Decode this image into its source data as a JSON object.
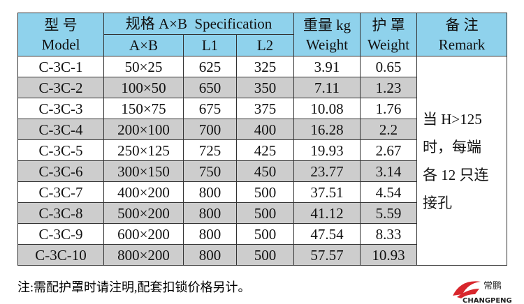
{
  "table": {
    "header": {
      "model": [
        "型 号",
        "Model"
      ],
      "spec": "规格 A×B",
      "spec_en": "Specification",
      "sub": [
        "A×B",
        "L1",
        "L2"
      ],
      "weight": [
        "重量 kg",
        "Weight"
      ],
      "guard": [
        "护 罩",
        "Weight"
      ],
      "remark": [
        "备 注",
        "Remark"
      ]
    },
    "rows": [
      [
        "C-3C-1",
        "50×25",
        "625",
        "325",
        "3.91",
        "0.65"
      ],
      [
        "C-3C-2",
        "100×50",
        "650",
        "350",
        "7.11",
        "1.23"
      ],
      [
        "C-3C-3",
        "150×75",
        "675",
        "375",
        "10.08",
        "1.76"
      ],
      [
        "C-3C-4",
        "200×100",
        "700",
        "400",
        "16.28",
        "2.2"
      ],
      [
        "C-3C-5",
        "250×125",
        "725",
        "425",
        "19.93",
        "2.67"
      ],
      [
        "C-3C-6",
        "300×150",
        "750",
        "450",
        "23.77",
        "3.14"
      ],
      [
        "C-3C-7",
        "400×200",
        "800",
        "500",
        "37.51",
        "4.54"
      ],
      [
        "C-3C-8",
        "500×200",
        "800",
        "500",
        "41.12",
        "5.59"
      ],
      [
        "C-3C-9",
        "600×200",
        "800",
        "500",
        "47.54",
        "8.33"
      ],
      [
        "C-3C-10",
        "800×200",
        "800",
        "500",
        "57.57",
        "10.93"
      ]
    ],
    "remark_lines": [
      "当 H>125",
      "时，每端",
      "各 12 只连",
      "接孔"
    ]
  },
  "note": "注:需配护罩时请注明,配套扣锁价格另计。",
  "logo": {
    "cn": "常鹏",
    "en": "CHANGPENG"
  }
}
